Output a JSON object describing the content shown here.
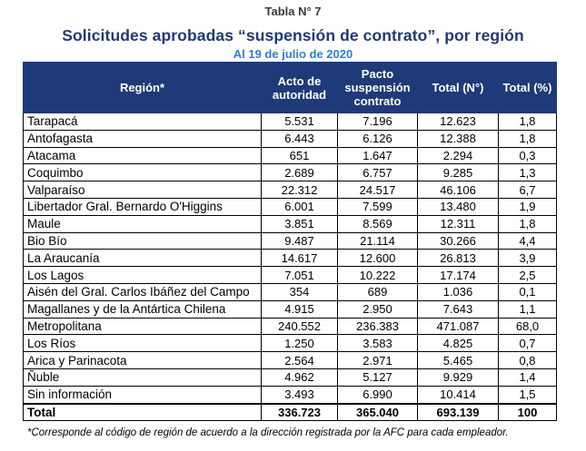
{
  "table_label": "Tabla N° 7",
  "title": "Solicitudes aprobadas “suspensión de contrato”, por región",
  "date_line": "Al 19 de julio de 2020",
  "headers": {
    "region": "Región*",
    "acto": "Acto de autoridad",
    "pacto": "Pacto suspensión contrato",
    "total_n": "Total (N°)",
    "total_pct": "Total (%)"
  },
  "rows": [
    {
      "region": "Tarapacá",
      "acto": "5.531",
      "pacto": "7.196",
      "total": "12.623",
      "pct": "1,8"
    },
    {
      "region": "Antofagasta",
      "acto": "6.443",
      "pacto": "6.126",
      "total": "12.388",
      "pct": "1,8"
    },
    {
      "region": "Atacama",
      "acto": "651",
      "pacto": "1.647",
      "total": "2.294",
      "pct": "0,3"
    },
    {
      "region": "Coquimbo",
      "acto": "2.689",
      "pacto": "6.757",
      "total": "9.285",
      "pct": "1,3"
    },
    {
      "region": "Valparaíso",
      "acto": "22.312",
      "pacto": "24.517",
      "total": "46.106",
      "pct": "6,7"
    },
    {
      "region": "Libertador Gral. Bernardo O'Higgins",
      "acto": "6.001",
      "pacto": "7.599",
      "total": "13.480",
      "pct": "1,9"
    },
    {
      "region": "Maule",
      "acto": "3.851",
      "pacto": "8.569",
      "total": "12.311",
      "pct": "1,8"
    },
    {
      "region": "Bio Bío",
      "acto": "9.487",
      "pacto": "21.114",
      "total": "30.266",
      "pct": "4,4"
    },
    {
      "region": "La Araucanía",
      "acto": "14.617",
      "pacto": "12.600",
      "total": "26.813",
      "pct": "3,9"
    },
    {
      "region": "Los Lagos",
      "acto": "7.051",
      "pacto": "10.222",
      "total": "17.174",
      "pct": "2,5"
    },
    {
      "region": "Aisén del Gral. Carlos Ibáñez del Campo",
      "acto": "354",
      "pacto": "689",
      "total": "1.036",
      "pct": "0,1"
    },
    {
      "region": "Magallanes y de la Antártica Chilena",
      "acto": "4.915",
      "pacto": "2.950",
      "total": "7.643",
      "pct": "1,1"
    },
    {
      "region": "Metropolitana",
      "acto": "240.552",
      "pacto": "236.383",
      "total": "471.087",
      "pct": "68,0"
    },
    {
      "region": "Los Ríos",
      "acto": "1.250",
      "pacto": "3.583",
      "total": "4.825",
      "pct": "0,7"
    },
    {
      "region": "Arica y Parinacota",
      "acto": "2.564",
      "pacto": "2.971",
      "total": "5.465",
      "pct": "0,8"
    },
    {
      "region": "Ñuble",
      "acto": "4.962",
      "pacto": "5.127",
      "total": "9.929",
      "pct": "1,4"
    },
    {
      "region": "Sin información",
      "acto": "3.493",
      "pacto": "6.990",
      "total": "10.414",
      "pct": "1,5"
    }
  ],
  "total_row": {
    "region": "Total",
    "acto": "336.723",
    "pacto": "365.040",
    "total": "693.139",
    "pct": "100"
  },
  "footnote": "*Corresponde al código de región de acuerdo a la dirección registrada por la AFC para cada empleador."
}
